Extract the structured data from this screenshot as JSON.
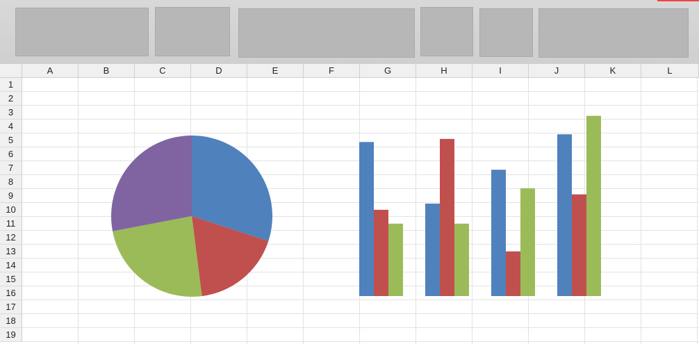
{
  "ribbon": {
    "groups": [
      "placeholder-1",
      "placeholder-2",
      "placeholder-3",
      "placeholder-4",
      "placeholder-5",
      "placeholder-6"
    ]
  },
  "sheet": {
    "columns": [
      "A",
      "B",
      "C",
      "D",
      "E",
      "F",
      "G",
      "H",
      "I",
      "J",
      "K",
      "L"
    ],
    "rows": [
      "1",
      "2",
      "3",
      "4",
      "5",
      "6",
      "7",
      "8",
      "9",
      "10",
      "11",
      "12",
      "13",
      "14",
      "15",
      "16",
      "17",
      "18",
      "19"
    ]
  },
  "colors": {
    "blue": "#4f81bd",
    "red": "#c0504d",
    "green": "#9bbb59",
    "purple": "#8064a2"
  },
  "chart_data": [
    {
      "type": "pie",
      "title": "",
      "slices": [
        {
          "value": 30,
          "color": "#4f81bd"
        },
        {
          "value": 18,
          "color": "#c0504d"
        },
        {
          "value": 24,
          "color": "#9bbb59"
        },
        {
          "value": 28,
          "color": "#8064a2"
        }
      ]
    },
    {
      "type": "bar",
      "title": "",
      "xlabel": "",
      "ylabel": "",
      "ylim": [
        0,
        12
      ],
      "categories": [
        "",
        "",
        "",
        ""
      ],
      "series": [
        {
          "color": "#4f81bd",
          "values": [
            10,
            6,
            8.2,
            10.5
          ]
        },
        {
          "color": "#c0504d",
          "values": [
            5.6,
            10.2,
            2.9,
            6.6
          ]
        },
        {
          "color": "#9bbb59",
          "values": [
            4.7,
            4.7,
            7.0,
            11.7
          ]
        }
      ]
    }
  ]
}
